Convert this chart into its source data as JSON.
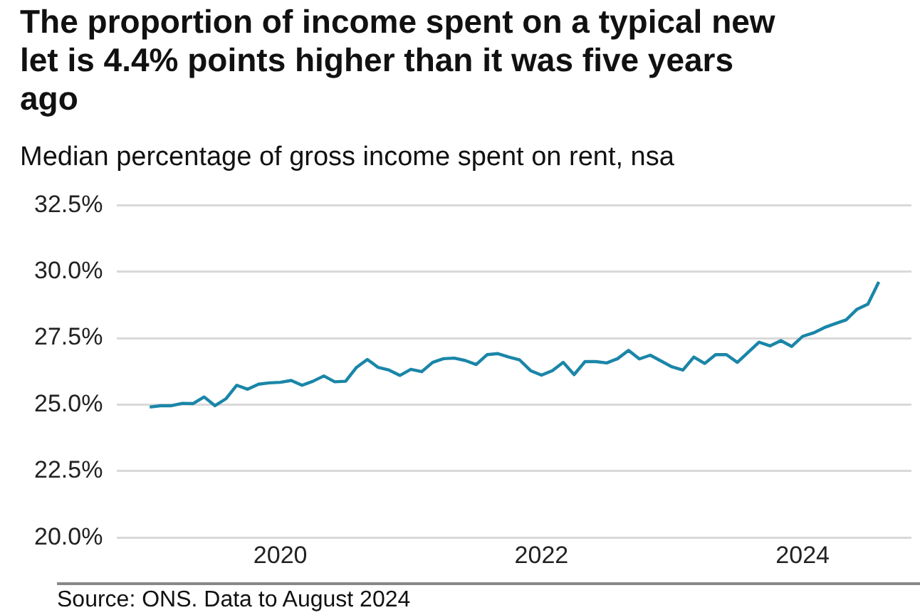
{
  "chart_data": {
    "type": "line",
    "title": "The proportion of income spent on a typical new let is 4.4% points higher than it was five years ago",
    "subtitle": "Median percentage of gross income spent on rent, nsa",
    "annotations": [
      "Source: ONS. Data to August 2024"
    ],
    "x": [
      "2019-01",
      "2019-02",
      "2019-03",
      "2019-04",
      "2019-05",
      "2019-06",
      "2019-07",
      "2019-08",
      "2019-09",
      "2019-10",
      "2019-11",
      "2019-12",
      "2020-01",
      "2020-02",
      "2020-03",
      "2020-04",
      "2020-05",
      "2020-06",
      "2020-07",
      "2020-08",
      "2020-09",
      "2020-10",
      "2020-11",
      "2020-12",
      "2021-01",
      "2021-02",
      "2021-03",
      "2021-04",
      "2021-05",
      "2021-06",
      "2021-07",
      "2021-08",
      "2021-09",
      "2021-10",
      "2021-11",
      "2021-12",
      "2022-01",
      "2022-02",
      "2022-03",
      "2022-04",
      "2022-05",
      "2022-06",
      "2022-07",
      "2022-08",
      "2022-09",
      "2022-10",
      "2022-11",
      "2022-12",
      "2023-01",
      "2023-02",
      "2023-03",
      "2023-04",
      "2023-05",
      "2023-06",
      "2023-07",
      "2023-08",
      "2023-09",
      "2023-10",
      "2023-11",
      "2023-12",
      "2024-01",
      "2024-02",
      "2024-03",
      "2024-04",
      "2024-05",
      "2024-06",
      "2024-07",
      "2024-08"
    ],
    "series": [
      {
        "color": "#1a86a8",
        "values": [
          24.91,
          24.96,
          24.96,
          25.05,
          25.04,
          25.29,
          24.96,
          25.22,
          25.73,
          25.58,
          25.77,
          25.82,
          25.84,
          25.91,
          25.73,
          25.88,
          26.08,
          25.86,
          25.88,
          26.4,
          26.7,
          26.4,
          26.3,
          26.1,
          26.33,
          26.24,
          26.59,
          26.73,
          26.75,
          26.66,
          26.51,
          26.88,
          26.92,
          26.79,
          26.68,
          26.28,
          26.11,
          26.28,
          26.59,
          26.13,
          26.62,
          26.62,
          26.57,
          26.73,
          27.04,
          26.72,
          26.86,
          26.64,
          26.42,
          26.3,
          26.79,
          26.55,
          26.88,
          26.88,
          26.59,
          26.97,
          27.35,
          27.21,
          27.41,
          27.19,
          27.57,
          27.7,
          27.9,
          28.05,
          28.19,
          28.59,
          28.78,
          29.62
        ]
      }
    ],
    "xlim": [
      "2018-10",
      "2024-11"
    ],
    "xticks": [
      "2020",
      "2022",
      "2024"
    ],
    "ylim": [
      20,
      32.5
    ],
    "yticks": [
      {
        "value": 20,
        "label": "20.0%"
      },
      {
        "value": 22.5,
        "label": "22.5%"
      },
      {
        "value": 25,
        "label": "25.0%"
      },
      {
        "value": 27.5,
        "label": "27.5%"
      },
      {
        "value": 30,
        "label": "30.0%"
      },
      {
        "value": 32.5,
        "label": "32.5%"
      }
    ],
    "grid": "y",
    "legend": false,
    "marker": "none",
    "line_style": "solid"
  }
}
